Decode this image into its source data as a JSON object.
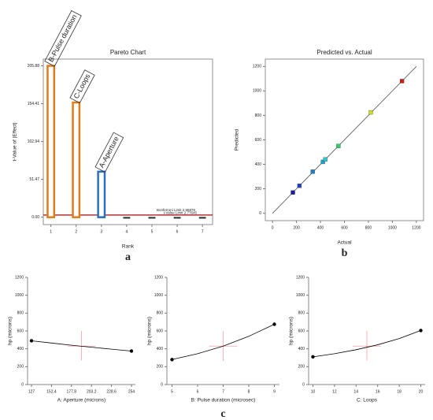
{
  "chart_data": [
    {
      "type": "bar",
      "title": "Pareto Chart",
      "xlabel": "Rank",
      "ylabel": "t-Value of |Effect|",
      "panel_label": "a",
      "x": [
        1,
        2,
        3,
        4,
        5,
        6,
        7
      ],
      "values": [
        205.88,
        156,
        62,
        -1.5,
        -1.5,
        -1.5,
        -1.5
      ],
      "colors": [
        "#e07b1a",
        "#e07b1a",
        "#2a6fc0",
        "#222222",
        "#222222",
        "#222222",
        "#222222"
      ],
      "bar_labels": [
        "B-Pulse duration",
        "C-Loops",
        "A-Aperture",
        null,
        null,
        null,
        null
      ],
      "ref_lines": [
        {
          "label": "Bonferroni Limit 2.95876",
          "value": 2.95876,
          "color": "#000000"
        },
        {
          "label": "t-Value Limit 2.77645",
          "value": 2.77645,
          "color": "#d62728"
        }
      ],
      "xlim": [
        0.7,
        7.4
      ],
      "xticks": [
        1,
        2,
        3,
        4,
        5,
        6,
        7
      ],
      "ylim": [
        -10,
        215
      ],
      "yticks": [
        {
          "value": 0,
          "label": "0.00"
        },
        51.47,
        102.94,
        154.41,
        205.88
      ]
    },
    {
      "type": "scatter",
      "title": "Predicted vs. Actual",
      "xlabel": "Actual",
      "ylabel": "Predicted",
      "panel_label": "b",
      "x": [
        170,
        225,
        335,
        420,
        440,
        550,
        820,
        1080
      ],
      "values": [
        170,
        225,
        340,
        420,
        440,
        550,
        825,
        1080
      ],
      "colors": [
        "#1a1aa8",
        "#1f3fc0",
        "#1e7fc8",
        "#22a0d0",
        "#2ac8c8",
        "#33cc66",
        "#c8e020",
        "#d01818"
      ],
      "xlim": [
        -60,
        1260
      ],
      "xticks": [
        0,
        200,
        400,
        600,
        800,
        1000,
        1200
      ],
      "ylim": [
        -60,
        1260
      ],
      "yticks": [
        0,
        200,
        400,
        600,
        800,
        1000,
        1200
      ]
    },
    {
      "type": "line",
      "xlabel": "A: Aperture (microns)",
      "ylabel": "hp (microns)",
      "color": "#000000",
      "x": [
        127,
        152.4,
        177.8,
        203.2,
        228.6,
        254
      ],
      "values": [
        490,
        465,
        440,
        418,
        396,
        375
      ],
      "center": {
        "x": 190.5,
        "y": 430,
        "ci": [
          270,
          600
        ]
      },
      "xlim": [
        122,
        259
      ],
      "xticks": [
        127,
        152.4,
        177.8,
        203.2,
        228.6,
        254
      ],
      "ylim": [
        0,
        1200
      ],
      "yticks": [
        0,
        200,
        400,
        600,
        800,
        1000,
        1200
      ]
    },
    {
      "type": "line",
      "xlabel": "B: Pulse duration (microsec)",
      "ylabel": "hp (microns)",
      "color": "#000000",
      "panel_label": "c",
      "x": [
        5,
        6,
        7,
        8,
        9
      ],
      "values": [
        280,
        345,
        430,
        540,
        675
      ],
      "center": {
        "x": 7,
        "y": 430,
        "ci": [
          265,
          600
        ]
      },
      "xlim": [
        4.8,
        9.2
      ],
      "xticks": [
        5,
        6,
        7,
        8,
        9
      ],
      "ylim": [
        0,
        1200
      ],
      "yticks": [
        0,
        200,
        400,
        600,
        800,
        1000,
        1200
      ]
    },
    {
      "type": "line",
      "xlabel": "C: Loops",
      "ylabel": "hp (microns)",
      "color": "#000000",
      "x": [
        10,
        12,
        14,
        16,
        18,
        20
      ],
      "values": [
        310,
        345,
        390,
        445,
        515,
        605
      ],
      "center": {
        "x": 15,
        "y": 430,
        "ci": [
          270,
          600
        ]
      },
      "xlim": [
        9.6,
        20.4
      ],
      "xticks": [
        10,
        12,
        14,
        16,
        18,
        20
      ],
      "ylim": [
        0,
        1200
      ],
      "yticks": [
        0,
        200,
        400,
        600,
        800,
        1000,
        1200
      ]
    }
  ]
}
